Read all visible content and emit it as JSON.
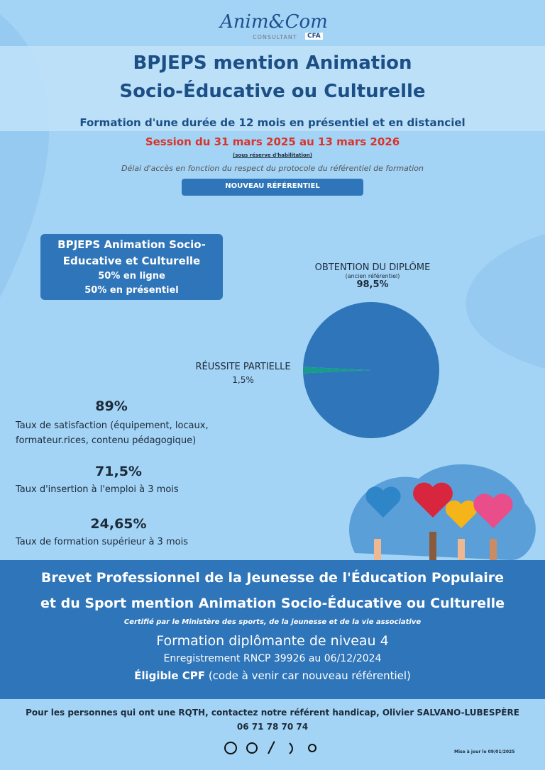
{
  "header": {
    "logo_text": "Anim&Com",
    "logo_sub": "CONSULTANT",
    "logo_badge": "CFA",
    "title_line1": "BPJEPS  mention Animation",
    "title_line2": "Socio-Éducative ou Culturelle",
    "duration": "Formation d'une durée de 12 mois en présentiel et en distanciel",
    "session": "Session du 31 mars 2025 au 13 mars 2026",
    "reserve": "(sous réserve d'habilitation)",
    "access": "Délai d'accès en fonction du respect du protocole du référentiel de formation",
    "badge": "NOUVEAU RÉFÉRENTIEL"
  },
  "box": {
    "lines": [
      "BPJEPS Animation Socio-",
      "Educative et Culturelle",
      "50% en ligne",
      "50% en présentiel"
    ]
  },
  "chart_data": {
    "type": "pie",
    "subtitle": "(ancien référentiel)",
    "categories": [
      "OBTENTION DU DIPLÔME",
      "RÉUSSITE PARTIELLE"
    ],
    "values": [
      98.5,
      1.5
    ],
    "value_labels": [
      "98,5%",
      "1,5%"
    ],
    "colors": [
      "#2f75b9",
      "#179c8c"
    ]
  },
  "stats": [
    {
      "value": "89%",
      "lines": [
        "Taux de satisfaction (équipement, locaux,",
        "formateur.rices, contenu pédagogique)"
      ]
    },
    {
      "value": "71,5%",
      "lines": [
        "Taux d'insertion à l'emploi à 3 mois"
      ]
    },
    {
      "value": "24,65%",
      "lines": [
        "Taux de formation supérieur à 3 mois"
      ]
    }
  ],
  "band": {
    "title_line1": "Brevet Professionnel de la Jeunesse de l'Éducation Populaire",
    "title_line2": "et du Sport mention Animation Socio-Éducative ou Culturelle",
    "certified": "Certifié par le Ministère des sports, de la jeunesse et de la vie associative",
    "level": "Formation diplômante de niveau 4",
    "rncp": "Enregistrement RNCP 39926 au 06/12/2024",
    "cpf_bold": "Éligible CPF",
    "cpf_rest": "(code à venir car nouveau référentiel)"
  },
  "footer": {
    "rqth": "Pour les personnes qui ont une RQTH, contactez notre référent handicap, Olivier SALVANO-LUBESPÈRE",
    "phone": "06 71 78 70 74",
    "updated": "Mise à jour le 09/01/2025"
  }
}
